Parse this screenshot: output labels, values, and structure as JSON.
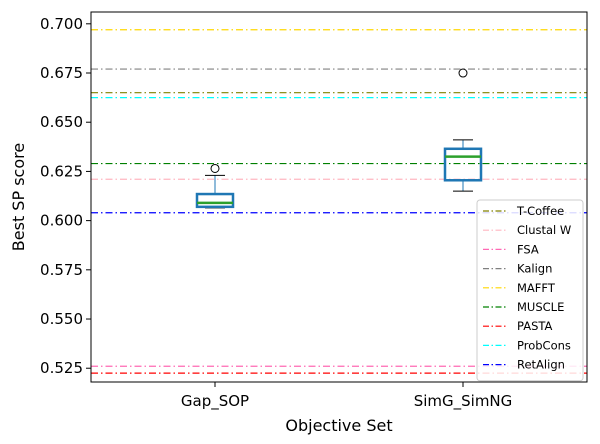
{
  "chart_data": {
    "type": "box",
    "title": "",
    "xlabel": "Objective Set",
    "ylabel": "Best SP score",
    "ylim": [
      0.518,
      0.706
    ],
    "yticks": [
      0.525,
      0.55,
      0.575,
      0.6,
      0.625,
      0.65,
      0.675,
      0.7
    ],
    "ytick_labels": [
      "0.525",
      "0.550",
      "0.575",
      "0.600",
      "0.625",
      "0.650",
      "0.675",
      "0.700"
    ],
    "categories": [
      "Gap_SOP",
      "SimG_SimNG"
    ],
    "boxes": [
      {
        "category": "Gap_SOP",
        "whisker_low": 0.6065,
        "q1": 0.607,
        "median": 0.609,
        "q3": 0.6135,
        "whisker_high": 0.623,
        "outliers": [
          0.6265
        ]
      },
      {
        "category": "SimG_SimNG",
        "whisker_low": 0.615,
        "q1": 0.6205,
        "median": 0.6325,
        "q3": 0.6365,
        "whisker_high": 0.641,
        "outliers": [
          0.675
        ]
      }
    ],
    "reference_lines": [
      {
        "name": "T-Coffee",
        "value": 0.665,
        "color": "#808000"
      },
      {
        "name": "Clustal W",
        "value": 0.621,
        "color": "#ffb6c1"
      },
      {
        "name": "FSA",
        "value": 0.526,
        "color": "#ff69b4"
      },
      {
        "name": "Kalign",
        "value": 0.677,
        "color": "#808080"
      },
      {
        "name": "MAFFT",
        "value": 0.697,
        "color": "#ffd700"
      },
      {
        "name": "MUSCLE",
        "value": 0.629,
        "color": "#008000"
      },
      {
        "name": "PASTA",
        "value": 0.5225,
        "color": "#ff0000"
      },
      {
        "name": "ProbCons",
        "value": 0.6625,
        "color": "#00ffff"
      },
      {
        "name": "RetAlign",
        "value": 0.604,
        "color": "#0000ff"
      }
    ],
    "box_color": "#1f77b4",
    "median_color": "#2ca02c",
    "grid": false,
    "legend_position": "lower-right"
  }
}
